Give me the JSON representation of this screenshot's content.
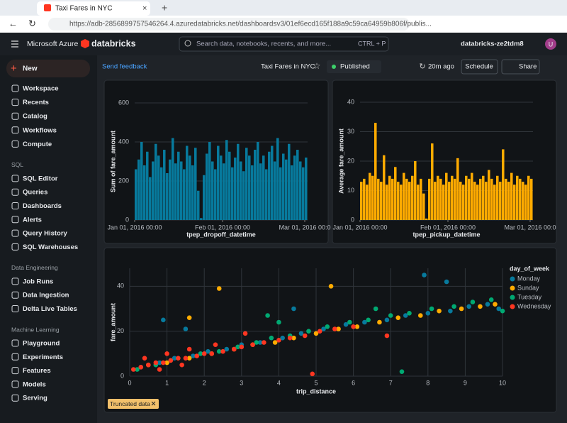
{
  "browser": {
    "tab_title": "Taxi Fares in NYC",
    "url": "https://adb-2856899757546264.4.azuredatabricks.net/dashboardsv3/01ef6ecd165f188a9c59ca64959b806f/publis..."
  },
  "topbar": {
    "brand": "Microsoft Azure",
    "product": "databricks",
    "search_placeholder": "Search data, notebooks, recents, and more...",
    "shortcut": "CTRL + P",
    "workspace": "databricks-ze2tdm8",
    "avatar": "U"
  },
  "sidebar": {
    "new": "New",
    "items": [
      "Workspace",
      "Recents",
      "Catalog",
      "Workflows",
      "Compute"
    ],
    "sections": [
      {
        "title": "SQL",
        "items": [
          "SQL Editor",
          "Queries",
          "Dashboards",
          "Alerts",
          "Query History",
          "SQL Warehouses"
        ]
      },
      {
        "title": "Data Engineering",
        "items": [
          "Job Runs",
          "Data Ingestion",
          "Delta Live Tables"
        ]
      },
      {
        "title": "Machine Learning",
        "items": [
          "Playground",
          "Experiments",
          "Features",
          "Models",
          "Serving"
        ]
      }
    ]
  },
  "dashboard": {
    "feedback": "Send feedback",
    "title": "Taxi Fares in NYC",
    "status": "Published",
    "updated": "20m ago",
    "schedule": "Schedule",
    "share": "Share",
    "badge": "Truncated data"
  },
  "chart_data": [
    {
      "type": "bar",
      "color": "#077a9d",
      "x_label": "tpep_dropoff_datetime",
      "y_label": "Sum of fare_amount",
      "x": [
        0,
        1,
        2,
        3,
        4,
        5,
        6,
        7,
        8,
        9,
        10,
        11,
        12,
        13,
        14,
        15,
        16,
        17,
        18,
        19,
        20,
        21,
        22,
        23,
        24,
        25,
        26,
        27,
        28,
        29,
        30,
        31,
        32,
        33,
        34,
        35,
        36,
        37,
        38,
        39,
        40,
        41,
        42,
        43,
        44,
        45,
        46,
        47,
        48,
        49,
        50,
        51,
        52,
        53,
        54,
        55,
        56,
        57,
        58,
        59,
        60
      ],
      "values": [
        260,
        310,
        400,
        280,
        350,
        220,
        300,
        390,
        330,
        270,
        360,
        240,
        310,
        420,
        290,
        350,
        300,
        260,
        380,
        330,
        280,
        370,
        150,
        10,
        230,
        340,
        400,
        300,
        260,
        380,
        330,
        290,
        410,
        350,
        270,
        320,
        390,
        300,
        250,
        370,
        330,
        280,
        360,
        400,
        290,
        330,
        260,
        350,
        380,
        300,
        420,
        270,
        340,
        310,
        390,
        280,
        330,
        360,
        300,
        270,
        320
      ],
      "xlim": [
        0,
        61
      ],
      "xticks": [
        {
          "value": 0,
          "label": "Jan 01, 2016 00:00"
        },
        {
          "value": 31,
          "label": "Feb 01, 2016 00:00"
        },
        {
          "value": 60,
          "label": "Mar 01, 2016 00:0"
        }
      ],
      "ylim": [
        0,
        600
      ],
      "yticks": [
        0,
        200,
        400,
        600
      ],
      "grid": true
    },
    {
      "type": "bar",
      "color": "#ffab00",
      "x_label": "tpep_pickup_datetime",
      "y_label": "Average fare_amount",
      "x": [
        0,
        1,
        2,
        3,
        4,
        5,
        6,
        7,
        8,
        9,
        10,
        11,
        12,
        13,
        14,
        15,
        16,
        17,
        18,
        19,
        20,
        21,
        22,
        23,
        24,
        25,
        26,
        27,
        28,
        29,
        30,
        31,
        32,
        33,
        34,
        35,
        36,
        37,
        38,
        39,
        40,
        41,
        42,
        43,
        44,
        45,
        46,
        47,
        48,
        49,
        50,
        51,
        52,
        53,
        54,
        55,
        56,
        57,
        58,
        59,
        60
      ],
      "values": [
        13,
        14,
        12,
        16,
        15,
        33,
        14,
        13,
        22,
        12,
        15,
        14,
        18,
        13,
        12,
        16,
        14,
        13,
        15,
        20,
        12,
        14,
        9,
        0.5,
        14,
        26,
        13,
        15,
        14,
        12,
        16,
        13,
        15,
        14,
        21,
        13,
        12,
        15,
        14,
        16,
        13,
        12,
        14,
        15,
        13,
        17,
        14,
        12,
        15,
        13,
        24,
        14,
        13,
        16,
        12,
        15,
        14,
        13,
        12,
        15,
        14
      ],
      "xlim": [
        0,
        61
      ],
      "xticks": [
        {
          "value": 0,
          "label": "Jan 01, 2016 00:00"
        },
        {
          "value": 31,
          "label": "Feb 01, 2016 00:00"
        },
        {
          "value": 60,
          "label": "Mar 01, 2016 00:0"
        }
      ],
      "ylim": [
        0,
        40
      ],
      "yticks": [
        0,
        10,
        20,
        30,
        40
      ],
      "grid": true
    },
    {
      "type": "scatter",
      "x_label": "trip_distance",
      "y_label": "fare_amount",
      "legend_title": "day_of_week",
      "legend": "right",
      "xlim": [
        0,
        10
      ],
      "xticks": [
        0,
        1,
        2,
        3,
        4,
        5,
        6,
        7,
        8,
        9,
        10
      ],
      "ylim": [
        0,
        48
      ],
      "yticks": [
        0,
        20,
        40
      ],
      "grid": true,
      "series": [
        {
          "name": "Monday",
          "color": "#077a9d",
          "x": [
            0.3,
            0.8,
            1.2,
            1.7,
            2.1,
            2.6,
            3.0,
            3.5,
            4.1,
            4.6,
            5.2,
            5.8,
            6.3,
            6.9,
            7.4,
            8.0,
            8.6,
            9.1,
            9.6,
            9.9,
            0.9,
            7.9,
            8.5,
            4.4,
            1.5
          ],
          "values": [
            4,
            6,
            8,
            9,
            11,
            12,
            14,
            15,
            17,
            19,
            21,
            23,
            24,
            25,
            27,
            28,
            29,
            31,
            32,
            30,
            25,
            45,
            42,
            30,
            21
          ]
        },
        {
          "name": "Sunday",
          "color": "#ffab00",
          "x": [
            0.5,
            1.0,
            1.6,
            2.2,
            2.8,
            3.3,
            3.9,
            4.4,
            5.0,
            5.6,
            6.1,
            6.7,
            7.2,
            7.8,
            8.3,
            8.9,
            9.4,
            9.8,
            2.4,
            5.4,
            1.6
          ],
          "values": [
            5,
            6,
            8,
            10,
            12,
            14,
            15,
            17,
            19,
            21,
            22,
            24,
            26,
            27,
            29,
            30,
            31,
            32,
            39,
            40,
            26
          ]
        },
        {
          "name": "Tuesday",
          "color": "#00a972",
          "x": [
            0.2,
            0.7,
            1.1,
            1.9,
            2.4,
            2.9,
            3.4,
            3.8,
            4.3,
            4.8,
            5.3,
            5.9,
            6.4,
            7.0,
            7.5,
            8.1,
            8.7,
            9.2,
            9.7,
            10.0,
            3.7,
            6.6,
            4.0,
            7.3
          ],
          "values": [
            3,
            5,
            7,
            10,
            11,
            13,
            15,
            17,
            18,
            20,
            22,
            24,
            25,
            27,
            28,
            30,
            31,
            33,
            34,
            29,
            27,
            30,
            24,
            2
          ]
        },
        {
          "name": "Wednesday",
          "color": "#ff3621",
          "x": [
            0.1,
            0.3,
            0.5,
            0.7,
            0.9,
            1.1,
            1.3,
            1.5,
            1.8,
            2.0,
            2.2,
            2.5,
            2.8,
            3.0,
            3.3,
            3.6,
            4.0,
            4.3,
            4.7,
            5.1,
            5.5,
            6.0,
            0.4,
            1.0,
            1.6,
            2.3,
            3.1,
            0.8,
            1.4,
            4.9,
            6.9
          ],
          "values": [
            3,
            4,
            5,
            6,
            6,
            7,
            8,
            8,
            9,
            10,
            10,
            11,
            12,
            13,
            14,
            15,
            16,
            17,
            18,
            20,
            21,
            22,
            8,
            10,
            12,
            14,
            19,
            3,
            5,
            1,
            18
          ]
        }
      ]
    }
  ]
}
